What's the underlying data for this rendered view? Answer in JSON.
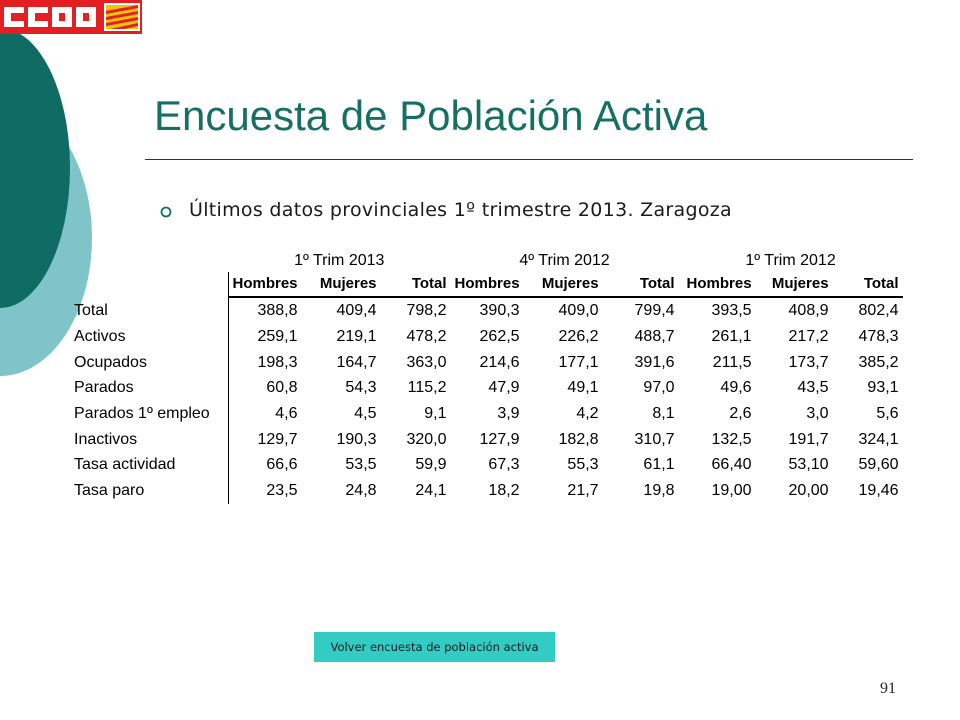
{
  "logo": {
    "text": "CCOO",
    "colors": {
      "red": "#e41f22",
      "gold": "#f4c400"
    }
  },
  "colors": {
    "title": "#156f62",
    "dark_teal": "#0f6b64",
    "light_teal": "#7fc4c8",
    "button": "#33ccc4"
  },
  "slide": {
    "title": "Encuesta de Población Activa",
    "subtitle": "Últimos datos provinciales 1º trimestre 2013. Zaragoza",
    "page_number": "91",
    "back_button_label": "Volver encuesta de población  activa",
    "bullet_icon": "circle-bullet-icon"
  },
  "table": {
    "groups": [
      "1º Trim 2013",
      "4º Trim 2012",
      "1º Trim 2012"
    ],
    "columns": [
      "Hombres",
      "Mujeres",
      "Total",
      "Hombres",
      "Mujeres",
      "Total",
      "Hombres",
      "Mujeres",
      "Total"
    ],
    "rows": [
      {
        "label": "Total",
        "values": [
          "388,8",
          "409,4",
          "798,2",
          "390,3",
          "409,0",
          "799,4",
          "393,5",
          "408,9",
          "802,4"
        ]
      },
      {
        "label": "Activos",
        "values": [
          "259,1",
          "219,1",
          "478,2",
          "262,5",
          "226,2",
          "488,7",
          "261,1",
          "217,2",
          "478,3"
        ]
      },
      {
        "label": "Ocupados",
        "values": [
          "198,3",
          "164,7",
          "363,0",
          "214,6",
          "177,1",
          "391,6",
          "211,5",
          "173,7",
          "385,2"
        ]
      },
      {
        "label": "Parados",
        "values": [
          "60,8",
          "54,3",
          "115,2",
          "47,9",
          "49,1",
          "97,0",
          "49,6",
          "43,5",
          "93,1"
        ]
      },
      {
        "label": "Parados 1º empleo",
        "values": [
          "4,6",
          "4,5",
          "9,1",
          "3,9",
          "4,2",
          "8,1",
          "2,6",
          "3,0",
          "5,6"
        ]
      },
      {
        "label": "Inactivos",
        "values": [
          "129,7",
          "190,3",
          "320,0",
          "127,9",
          "182,8",
          "310,7",
          "132,5",
          "191,7",
          "324,1"
        ]
      },
      {
        "label": "Tasa actividad",
        "values": [
          "66,6",
          "53,5",
          "59,9",
          "67,3",
          "55,3",
          "61,1",
          "66,40",
          "53,10",
          "59,60"
        ]
      },
      {
        "label": "Tasa paro",
        "values": [
          "23,5",
          "24,8",
          "24,1",
          "18,2",
          "21,7",
          "19,8",
          "19,00",
          "20,00",
          "19,46"
        ]
      }
    ]
  }
}
